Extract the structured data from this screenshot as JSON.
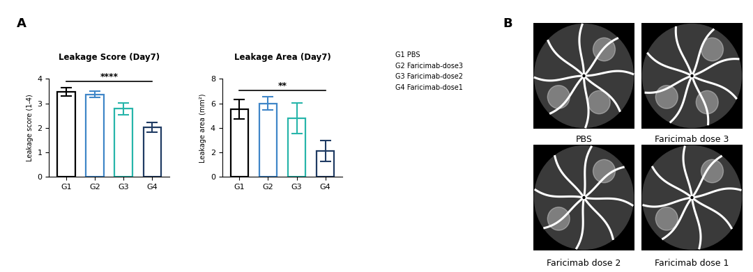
{
  "panel_labels": [
    "A",
    "B"
  ],
  "chart_data": [
    {
      "type": "bar",
      "title": "Leakage Score (Day7)",
      "y_label": "Leakage score (1-4)",
      "categories": [
        "G1",
        "G2",
        "G3",
        "G4"
      ],
      "values": [
        3.47,
        3.37,
        2.78,
        2.03
      ],
      "errors": [
        0.18,
        0.13,
        0.25,
        0.2
      ],
      "colors": [
        "#000000",
        "#3f86c8",
        "#27b5aa",
        "#1f3b63"
      ],
      "ylim": [
        0,
        4
      ],
      "yticks": [
        0,
        1,
        2,
        3,
        4
      ],
      "significance": {
        "from": "G1",
        "to": "G4",
        "label": "****"
      }
    },
    {
      "type": "bar",
      "title": "Leakage Area (Day7)",
      "y_label": "Leakage area (mm²)",
      "categories": [
        "G1",
        "G2",
        "G3",
        "G4"
      ],
      "values": [
        5.5,
        6.0,
        4.8,
        2.1
      ],
      "errors": [
        0.8,
        0.55,
        1.25,
        0.85
      ],
      "colors": [
        "#000000",
        "#3f86c8",
        "#27b5aa",
        "#1f3b63"
      ],
      "ylim": [
        0,
        8
      ],
      "yticks": [
        0,
        2,
        4,
        6,
        8
      ],
      "significance": {
        "from": "G1",
        "to": "G4",
        "label": "**"
      }
    }
  ],
  "group_legend": [
    "G1 PBS",
    "G2 Faricimab-dose3",
    "G3 Faricimab-dose2",
    "G4 Faricimab-dose1"
  ],
  "images": {
    "captions": [
      "PBS",
      "Faricimab dose 3",
      "Faricimab dose 2",
      "Faricimab dose 1"
    ]
  }
}
